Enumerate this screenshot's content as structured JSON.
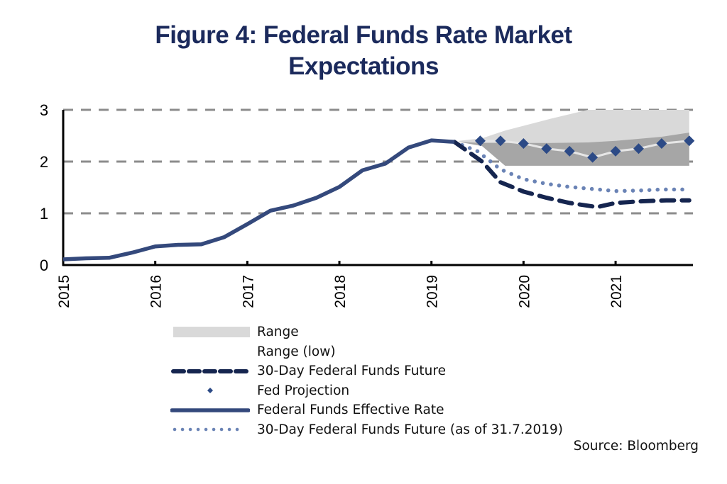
{
  "title_lines": [
    "Figure 4: Federal Funds Rate Market",
    "Expectations"
  ],
  "source": "Source: Bloomberg",
  "colors": {
    "title": "#1b2a5c",
    "effective_rate": "#34497c",
    "future": "#15254f",
    "future_july": "#6a83b5",
    "fed_projection": "#2c4a86",
    "range": "#d9d9d9",
    "range_low": "#a6a6a6",
    "grid": "#8c8c8c",
    "projection_connector": "#e6e6e6"
  },
  "chart_data": {
    "type": "line",
    "title": "Figure 4: Federal Funds Rate Market Expectations",
    "xlabel": "",
    "ylabel": "",
    "xlim": [
      2015.0,
      2021.84
    ],
    "ylim": [
      0,
      3
    ],
    "yticks": [
      0,
      1,
      2,
      3
    ],
    "xticks": [
      "2015",
      "2016",
      "2017",
      "2018",
      "2019",
      "2020",
      "2021"
    ],
    "grid": "horizontal dashed",
    "legend_position": "bottom",
    "series": [
      {
        "name": "Federal Funds Effective Rate",
        "style": "solid",
        "x": [
          2015.0,
          2015.25,
          2015.5,
          2015.75,
          2016.0,
          2016.25,
          2016.5,
          2016.75,
          2017.0,
          2017.25,
          2017.5,
          2017.75,
          2018.0,
          2018.25,
          2018.5,
          2018.75,
          2019.0,
          2019.25
        ],
        "y": [
          0.11,
          0.13,
          0.14,
          0.24,
          0.36,
          0.39,
          0.4,
          0.54,
          0.79,
          1.05,
          1.15,
          1.3,
          1.51,
          1.83,
          1.96,
          2.27,
          2.41,
          2.38
        ]
      },
      {
        "name": "30-Day Federal Funds Future",
        "style": "dashed",
        "x": [
          2019.25,
          2019.55,
          2019.75,
          2020.0,
          2020.25,
          2020.5,
          2020.8,
          2021.0,
          2021.25,
          2021.55,
          2021.8
        ],
        "y": [
          2.38,
          2.0,
          1.6,
          1.42,
          1.3,
          1.2,
          1.12,
          1.2,
          1.23,
          1.25,
          1.25
        ]
      },
      {
        "name": "30-Day Federal Funds Future (as of 31.7.2019)",
        "style": "dotted",
        "x": [
          2019.25,
          2019.5,
          2019.75,
          2020.0,
          2020.25,
          2020.5,
          2020.75,
          2021.0,
          2021.25,
          2021.5,
          2021.8
        ],
        "y": [
          2.38,
          2.2,
          1.85,
          1.66,
          1.57,
          1.51,
          1.47,
          1.43,
          1.44,
          1.46,
          1.46
        ]
      },
      {
        "name": "Fed Projection",
        "style": "markers",
        "x": [
          2019.53,
          2019.75,
          2020.0,
          2020.25,
          2020.5,
          2020.75,
          2021.0,
          2021.25,
          2021.5,
          2021.8
        ],
        "y": [
          2.4,
          2.4,
          2.35,
          2.25,
          2.2,
          2.08,
          2.2,
          2.25,
          2.35,
          2.4
        ]
      }
    ],
    "bands": [
      {
        "name": "Range",
        "x": [
          2019.3,
          2019.55,
          2019.8,
          2020.3,
          2020.7,
          2021.0,
          2021.5,
          2021.8
        ],
        "low": [
          2.38,
          2.3,
          1.92,
          1.92,
          1.92,
          1.92,
          1.92,
          1.92
        ],
        "high": [
          2.4,
          2.45,
          2.6,
          2.83,
          3.0,
          3.0,
          3.0,
          3.0
        ]
      },
      {
        "name": "Range (low)",
        "x": [
          2019.3,
          2019.55,
          2019.8,
          2020.3,
          2020.7,
          2021.0,
          2021.5,
          2021.8
        ],
        "low": [
          2.38,
          2.3,
          1.92,
          1.92,
          1.92,
          1.92,
          1.92,
          1.92
        ],
        "high": [
          2.38,
          2.36,
          2.36,
          2.36,
          2.37,
          2.4,
          2.48,
          2.56
        ]
      }
    ]
  },
  "legend": [
    {
      "label": "Range",
      "kind": "range"
    },
    {
      "label": "Range (low)",
      "kind": "range-low"
    },
    {
      "label": "30-Day Federal Funds Future",
      "kind": "dashed"
    },
    {
      "label": "Fed Projection",
      "kind": "marker"
    },
    {
      "label": "Federal Funds Effective Rate",
      "kind": "solid"
    },
    {
      "label": "30-Day Federal Funds Future (as of 31.7.2019)",
      "kind": "dotted"
    }
  ]
}
